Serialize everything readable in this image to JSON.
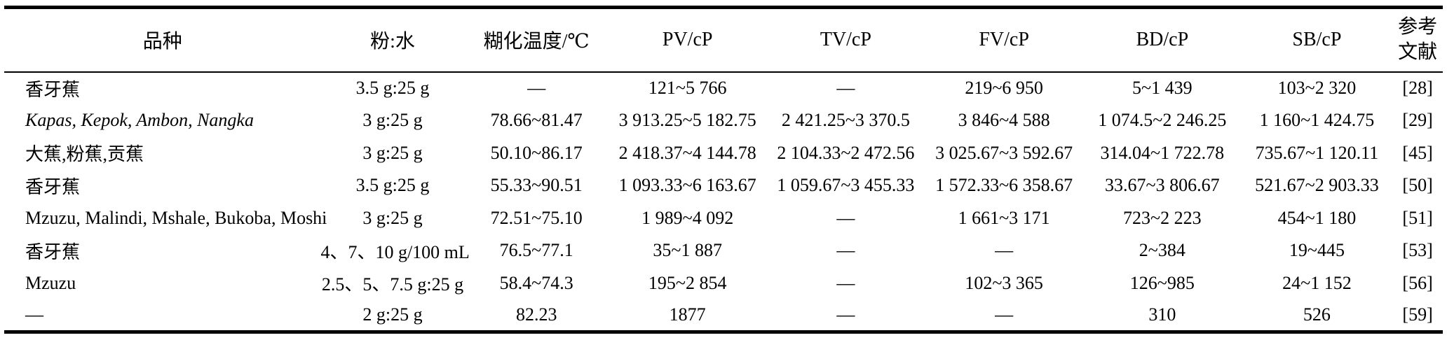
{
  "table": {
    "headers": [
      "品种",
      "粉:水",
      "糊化温度/℃",
      "PV/cP",
      "TV/cP",
      "FV/cP",
      "BD/cP",
      "SB/cP"
    ],
    "ref_header": {
      "line1": "参考",
      "line2": "文献"
    },
    "rows": [
      {
        "variety": "香牙蕉",
        "variety_italic": false,
        "ratio": "3.5 g:25 g",
        "gt": "—",
        "pv": "121~5 766",
        "tv": "—",
        "fv": "219~6 950",
        "bd": "5~1 439",
        "sb": "103~2 320",
        "ref": "[28]"
      },
      {
        "variety": "Kapas, Kepok, Ambon, Nangka",
        "variety_italic": true,
        "ratio": "3 g:25 g",
        "gt": "78.66~81.47",
        "pv": "3 913.25~5 182.75",
        "tv": "2 421.25~3 370.5",
        "fv": "3 846~4 588",
        "bd": "1 074.5~2 246.25",
        "sb": "1 160~1 424.75",
        "ref": "[29]"
      },
      {
        "variety": "大蕉,粉蕉,贡蕉",
        "variety_italic": false,
        "ratio": "3 g:25 g",
        "gt": "50.10~86.17",
        "pv": "2 418.37~4 144.78",
        "tv": "2 104.33~2 472.56",
        "fv": "3 025.67~3 592.67",
        "bd": "314.04~1 722.78",
        "sb": "735.67~1 120.11",
        "ref": "[45]"
      },
      {
        "variety": "香牙蕉",
        "variety_italic": false,
        "ratio": "3.5 g:25 g",
        "gt": "55.33~90.51",
        "pv": "1 093.33~6 163.67",
        "tv": "1 059.67~3 455.33",
        "fv": "1 572.33~6 358.67",
        "bd": "33.67~3 806.67",
        "sb": "521.67~2 903.33",
        "ref": "[50]"
      },
      {
        "variety": "Mzuzu, Malindi, Mshale, Bukoba, Moshi",
        "variety_italic": false,
        "ratio": "3 g:25 g",
        "gt": "72.51~75.10",
        "pv": "1 989~4 092",
        "tv": "—",
        "fv": "1 661~3 171",
        "bd": "723~2 223",
        "sb": "454~1 180",
        "ref": "[51]"
      },
      {
        "variety": "香牙蕉",
        "variety_italic": false,
        "ratio": "4、7、10 g/100 mL",
        "gt": "76.5~77.1",
        "pv": "35~1 887",
        "tv": "—",
        "fv": "—",
        "bd": "2~384",
        "sb": "19~445",
        "ref": "[53]"
      },
      {
        "variety": "Mzuzu",
        "variety_italic": false,
        "ratio": "2.5、5、7.5 g:25 g",
        "gt": "58.4~74.3",
        "pv": "195~2 854",
        "tv": "—",
        "fv": "102~3 365",
        "bd": "126~985",
        "sb": "24~1 152",
        "ref": "[56]"
      },
      {
        "variety": "—",
        "variety_italic": false,
        "ratio": "2 g:25 g",
        "gt": "82.23",
        "pv": "1877",
        "tv": "—",
        "fv": "—",
        "bd": "310",
        "sb": "526",
        "ref": "[59]"
      }
    ]
  }
}
